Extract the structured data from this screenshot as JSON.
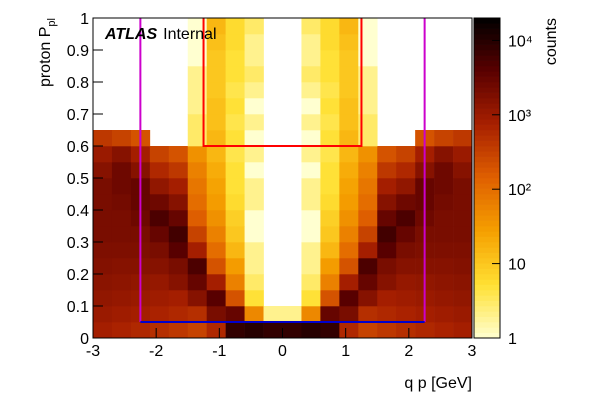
{
  "chart_data": {
    "type": "heatmap",
    "ylabel": "proton P",
    "ylabel_sub": "pl",
    "xlabel": "q p  [GeV]",
    "zlabel": "counts",
    "atlas": "ATLAS",
    "atlas_tag": "Internal",
    "xlim": [
      -3,
      3
    ],
    "ylim": [
      0,
      1
    ],
    "xticks": [
      -3,
      -2,
      -1,
      0,
      1,
      2,
      3
    ],
    "yticks": [
      0,
      0.1,
      0.2,
      0.3,
      0.4,
      0.5,
      0.6,
      0.7,
      0.8,
      0.9,
      1
    ],
    "zlim": [
      1,
      20000
    ],
    "zlog": true,
    "zticks": [
      1,
      10,
      {
        "value": 100,
        "label": "10²"
      },
      {
        "value": 1000,
        "label": "10³"
      },
      {
        "value": 10000,
        "label": "10⁴"
      }
    ],
    "colorscale": [
      "#ffffd0",
      "#ffe033",
      "#f5a000",
      "#e06000",
      "#a82000",
      "#5a0000",
      "#000000"
    ],
    "z": [
      [
        800,
        700,
        600,
        500,
        400,
        300,
        600,
        8000,
        10000,
        8000,
        8000,
        10000,
        8000,
        600,
        300,
        400,
        500,
        600,
        700,
        800
      ],
      [
        1000,
        900,
        800,
        700,
        600,
        500,
        2000,
        3000,
        50,
        2,
        2,
        50,
        3000,
        2000,
        500,
        600,
        700,
        800,
        900,
        1000
      ],
      [
        1200,
        1100,
        1000,
        900,
        800,
        1500,
        4000,
        200,
        5,
        0,
        0,
        5,
        200,
        4000,
        1500,
        800,
        900,
        1000,
        1100,
        1200
      ],
      [
        1400,
        1300,
        1200,
        1100,
        1500,
        3000,
        800,
        60,
        3,
        0,
        0,
        3,
        60,
        800,
        3000,
        1500,
        1100,
        1200,
        1300,
        1400
      ],
      [
        1600,
        1500,
        1500,
        1500,
        2000,
        5000,
        200,
        30,
        2,
        0,
        0,
        2,
        30,
        200,
        5000,
        2000,
        1500,
        1500,
        1500,
        1600
      ],
      [
        1800,
        1800,
        1800,
        2000,
        4000,
        800,
        100,
        15,
        2,
        0,
        0,
        2,
        15,
        100,
        800,
        4000,
        2000,
        1800,
        1800,
        1800
      ],
      [
        2000,
        2000,
        2000,
        3000,
        6000,
        300,
        60,
        10,
        1,
        0,
        0,
        1,
        10,
        60,
        300,
        6000,
        3000,
        2000,
        2000,
        2000
      ],
      [
        2000,
        2000,
        2500,
        5000,
        3000,
        150,
        40,
        8,
        1,
        0,
        0,
        1,
        8,
        40,
        150,
        3000,
        5000,
        2500,
        2000,
        2000
      ],
      [
        2000,
        2200,
        3000,
        2500,
        1500,
        100,
        30,
        6,
        2,
        0,
        0,
        2,
        6,
        30,
        100,
        1500,
        2500,
        3000,
        2200,
        2000
      ],
      [
        2000,
        2500,
        3000,
        1200,
        800,
        80,
        25,
        5,
        2,
        0,
        0,
        2,
        5,
        25,
        80,
        800,
        1200,
        3000,
        2500,
        2000
      ],
      [
        1500,
        2500,
        1500,
        600,
        400,
        60,
        20,
        5,
        1,
        0,
        0,
        1,
        5,
        20,
        60,
        400,
        600,
        1500,
        2500,
        1500
      ],
      [
        1000,
        1500,
        800,
        300,
        200,
        40,
        15,
        4,
        2,
        0,
        0,
        2,
        4,
        15,
        40,
        200,
        300,
        800,
        1500,
        1000
      ],
      [
        400,
        300,
        200,
        0,
        0,
        3,
        15,
        5,
        1,
        0,
        0,
        1,
        5,
        15,
        3,
        0,
        0,
        200,
        300,
        400
      ],
      [
        0,
        0,
        0,
        0,
        0,
        3,
        12,
        4,
        2,
        0,
        0,
        2,
        4,
        12,
        3,
        0,
        0,
        0,
        0,
        0
      ],
      [
        0,
        0,
        0,
        0,
        0,
        2,
        12,
        5,
        1,
        0,
        0,
        1,
        5,
        12,
        2,
        0,
        0,
        0,
        0,
        0
      ],
      [
        0,
        0,
        0,
        0,
        0,
        2,
        10,
        4,
        2,
        0,
        0,
        2,
        4,
        10,
        2,
        0,
        0,
        0,
        0,
        0
      ],
      [
        0,
        0,
        0,
        0,
        0,
        2,
        10,
        5,
        3,
        0,
        0,
        3,
        5,
        10,
        2,
        0,
        0,
        0,
        0,
        0
      ],
      [
        0,
        0,
        0,
        0,
        0,
        1,
        10,
        5,
        2,
        0,
        0,
        2,
        5,
        10,
        1,
        0,
        0,
        0,
        0,
        0
      ],
      [
        0,
        0,
        0,
        0,
        0,
        1,
        12,
        6,
        2,
        0,
        0,
        2,
        6,
        12,
        1,
        0,
        0,
        0,
        0,
        0
      ],
      [
        0,
        0,
        0,
        0,
        0,
        1,
        15,
        6,
        3,
        0,
        0,
        3,
        6,
        15,
        1,
        0,
        0,
        0,
        0,
        0
      ]
    ],
    "shapes": [
      {
        "x": [
          -1.25,
          -1.25,
          1.25,
          1.25
        ],
        "y": [
          1,
          0.6,
          0.6,
          1
        ],
        "color": "#ff0000"
      },
      {
        "x": [
          -2.25,
          -2.25
        ],
        "y": [
          0.05,
          1
        ],
        "color": "#cc00cc"
      },
      {
        "x": [
          2.25,
          2.25
        ],
        "y": [
          0.05,
          1
        ],
        "color": "#cc00cc"
      },
      {
        "x": [
          -2.25,
          2.25
        ],
        "y": [
          0.05,
          0.05
        ],
        "color": "#0000cc"
      }
    ]
  }
}
